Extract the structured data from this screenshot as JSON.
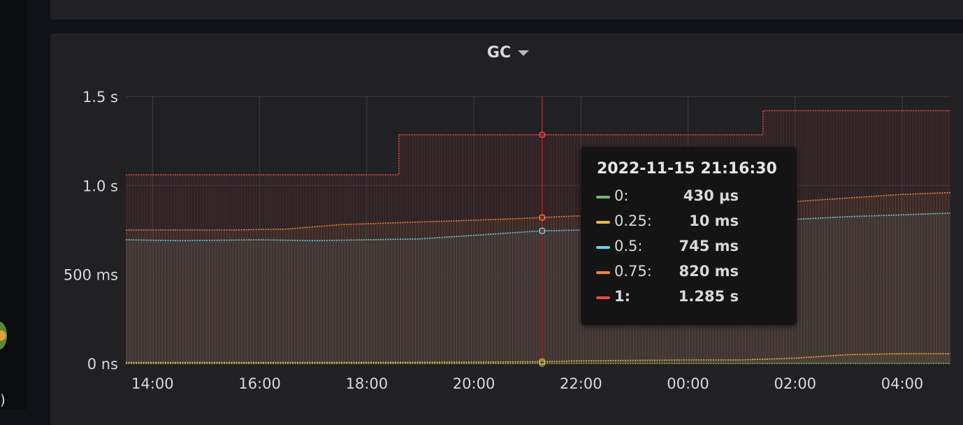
{
  "panel": {
    "title": "GC"
  },
  "colors": {
    "q0": "#7eb26d",
    "q025": "#eab839",
    "q05": "#6ed0e0",
    "q075": "#ef843c",
    "q1": "#e24d42",
    "crosshair": "#c4162a"
  },
  "tooltip": {
    "time": "2022-11-15 21:16:30",
    "rows": [
      {
        "name": "0:",
        "value": "430 µs",
        "color": "#7eb26d"
      },
      {
        "name": "0.25:",
        "value": "10 ms",
        "color": "#eab839"
      },
      {
        "name": "0.5:",
        "value": "745 ms",
        "color": "#6ed0e0"
      },
      {
        "name": "0.75:",
        "value": "820 ms",
        "color": "#ef843c"
      },
      {
        "name": "1:",
        "value": "1.285 s",
        "color": "#e24d42"
      }
    ]
  },
  "chart_data": {
    "type": "line",
    "title": "GC",
    "y_ticks": [
      "0 ns",
      "500 ms",
      "1.0 s",
      "1.5 s"
    ],
    "y_tick_values": [
      0,
      0.5,
      1.0,
      1.5
    ],
    "ylim": [
      0,
      1.5
    ],
    "x_ticks": [
      "14:00",
      "16:00",
      "18:00",
      "20:00",
      "22:00",
      "00:00",
      "02:00",
      "04:00"
    ],
    "x_tick_hours": [
      14,
      16,
      18,
      20,
      22,
      24,
      26,
      28
    ],
    "xlim_hours": [
      13.5,
      28.9
    ],
    "crosshair_hour": 21.275,
    "grid": true,
    "legend": "tooltip",
    "series": [
      {
        "name": "0",
        "color": "#7eb26d",
        "x": [
          13.5,
          16,
          18,
          20,
          21.28,
          22,
          24,
          26,
          28,
          28.9
        ],
        "y": [
          0.0004,
          0.0004,
          0.0004,
          0.0004,
          0.00043,
          0.0005,
          0.0005,
          0.0006,
          0.0006,
          0.0006
        ]
      },
      {
        "name": "0.25",
        "color": "#eab839",
        "x": [
          13.5,
          16,
          18,
          20,
          21.28,
          22,
          24,
          25,
          26,
          27,
          28,
          28.9
        ],
        "y": [
          0.005,
          0.005,
          0.006,
          0.008,
          0.01,
          0.015,
          0.02,
          0.02,
          0.03,
          0.05,
          0.055,
          0.055
        ]
      },
      {
        "name": "0.5",
        "color": "#6ed0e0",
        "x": [
          13.5,
          14.5,
          16,
          17,
          18,
          19,
          20,
          21,
          21.28,
          22,
          23,
          24,
          25,
          26,
          27,
          28,
          28.9
        ],
        "y": [
          0.695,
          0.69,
          0.695,
          0.69,
          0.695,
          0.7,
          0.72,
          0.74,
          0.745,
          0.75,
          0.76,
          0.77,
          0.79,
          0.81,
          0.825,
          0.835,
          0.845
        ]
      },
      {
        "name": "0.75",
        "color": "#ef843c",
        "x": [
          13.5,
          14.5,
          15.5,
          16.5,
          17.5,
          18.5,
          19.5,
          20.5,
          21.28,
          22,
          23,
          24,
          25,
          26,
          27,
          28,
          28.9
        ],
        "y": [
          0.75,
          0.75,
          0.75,
          0.755,
          0.78,
          0.79,
          0.8,
          0.81,
          0.82,
          0.83,
          0.85,
          0.87,
          0.89,
          0.91,
          0.93,
          0.95,
          0.96
        ]
      },
      {
        "name": "1",
        "color": "#e24d42",
        "step": true,
        "x": [
          13.5,
          18.6,
          18.6,
          25.4,
          25.4,
          28.9
        ],
        "y": [
          1.06,
          1.06,
          1.285,
          1.285,
          1.42,
          1.42
        ]
      }
    ]
  }
}
